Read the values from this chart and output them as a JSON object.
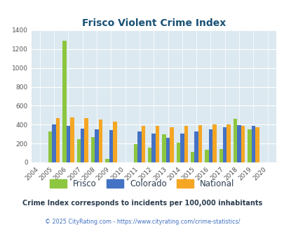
{
  "title": "Frisco Violent Crime Index",
  "years": [
    2004,
    2005,
    2006,
    2007,
    2008,
    2009,
    2010,
    2011,
    2012,
    2013,
    2014,
    2015,
    2016,
    2017,
    2018,
    2019,
    2020
  ],
  "frisco": [
    0,
    325,
    1290,
    245,
    265,
    40,
    0,
    190,
    155,
    295,
    210,
    110,
    135,
    140,
    465,
    350,
    0
  ],
  "colorado": [
    0,
    400,
    390,
    355,
    350,
    340,
    0,
    330,
    305,
    260,
    305,
    330,
    350,
    375,
    395,
    385,
    0
  ],
  "national": [
    0,
    470,
    480,
    470,
    455,
    430,
    0,
    390,
    390,
    375,
    385,
    395,
    400,
    400,
    385,
    375,
    0
  ],
  "frisco_color": "#8dc63f",
  "colorado_color": "#4472c4",
  "national_color": "#f5a623",
  "bg_color": "#dce9f0",
  "title_color": "#1a5276",
  "subtitle_color": "#2c3e50",
  "copyright_color": "#4472c4",
  "ylim": [
    0,
    1400
  ],
  "yticks": [
    0,
    200,
    400,
    600,
    800,
    1000,
    1200,
    1400
  ],
  "bar_width": 0.27,
  "subtitle": "Crime Index corresponds to incidents per 100,000 inhabitants",
  "copyright": "© 2025 CityRating.com - https://www.cityrating.com/crime-statistics/"
}
